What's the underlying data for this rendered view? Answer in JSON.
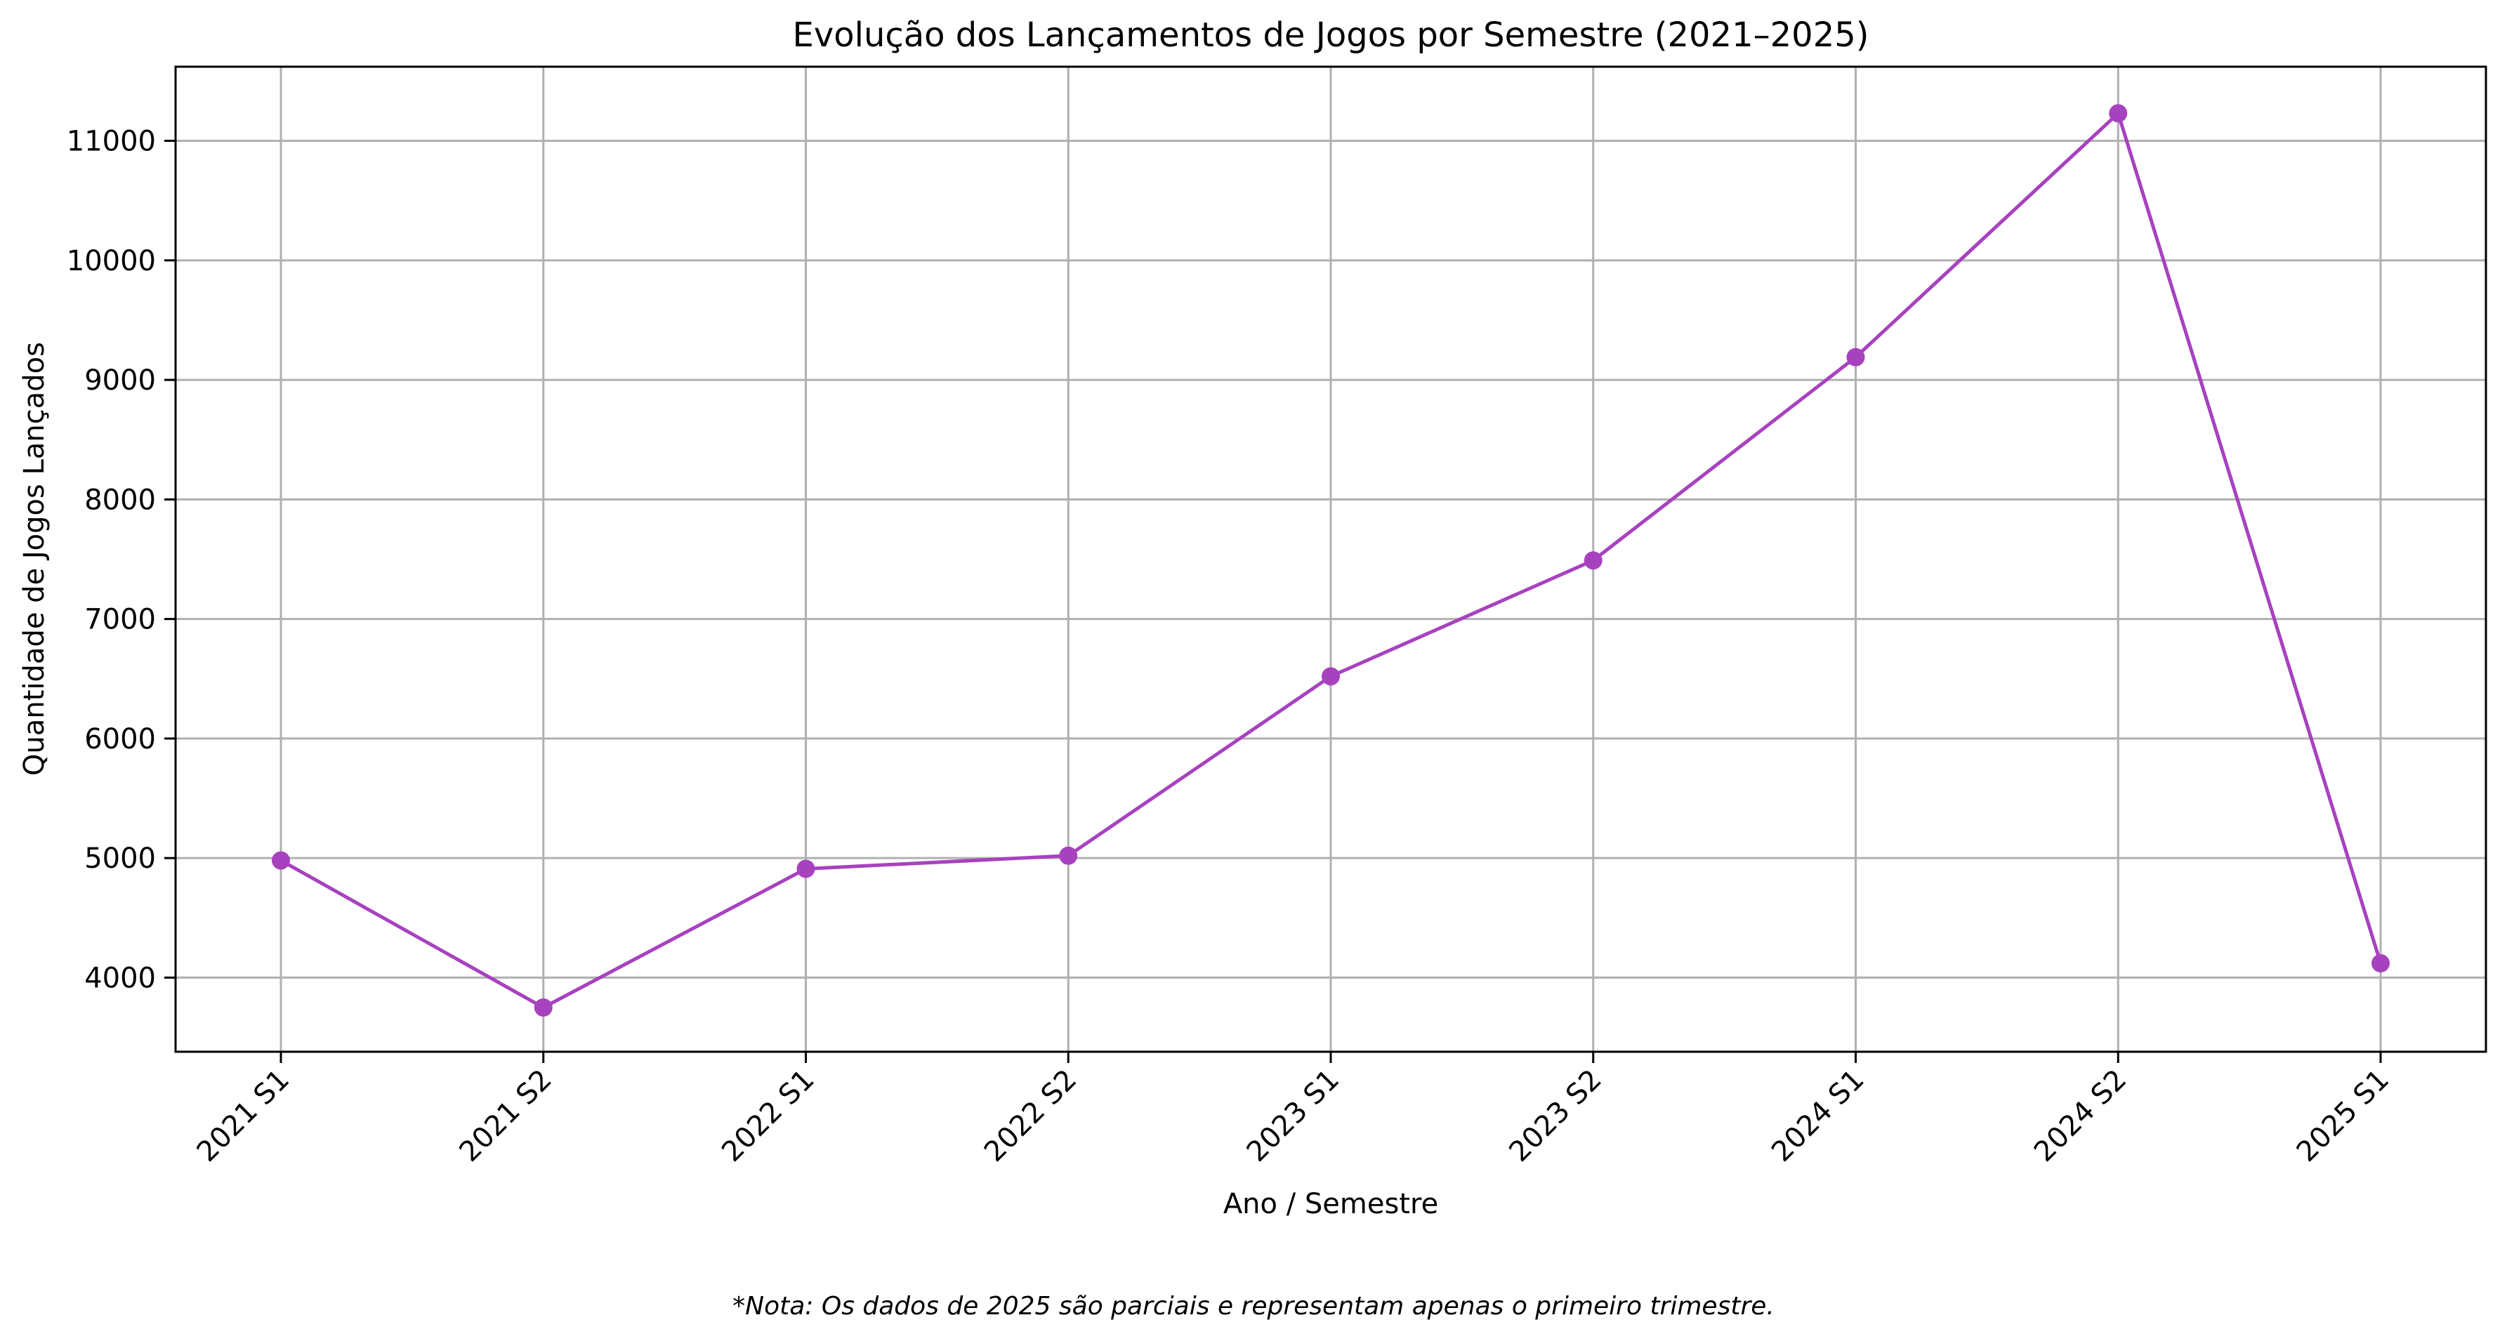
{
  "chart_data": {
    "type": "line",
    "title": "Evolução dos Lançamentos de Jogos por Semestre (2021–2025)",
    "xlabel": "Ano / Semestre",
    "ylabel": "Quantidade de Jogos Lançados",
    "categories": [
      "2021 S1",
      "2021 S2",
      "2022 S1",
      "2022 S2",
      "2023 S1",
      "2023 S2",
      "2024 S1",
      "2024 S2",
      "2025 S1"
    ],
    "series": [
      {
        "values": [
          4980,
          3750,
          4910,
          5020,
          6520,
          7490,
          9190,
          11230,
          4120
        ],
        "color": "#a742bf",
        "marker": "circle"
      }
    ],
    "ylim": [
      3380,
      11620
    ],
    "yticks": [
      4000,
      5000,
      6000,
      7000,
      8000,
      9000,
      10000,
      11000
    ],
    "grid": true,
    "legend": "none",
    "xtick_rotation": 45
  },
  "footnote": "*Nota: Os dados de 2025 são parciais e representam apenas o primeiro trimestre."
}
